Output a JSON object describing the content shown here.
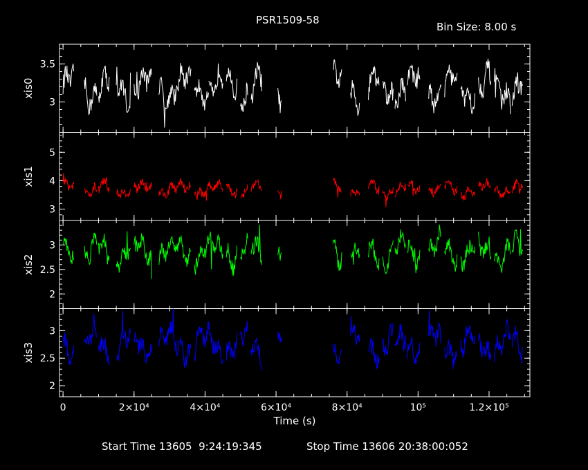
{
  "title": "PSR1509-58",
  "bin_size_label": "Bin Size: 8.00 s",
  "start_time_label": "Start Time 13605  9:24:19:345",
  "stop_time_label": "Stop Time 13606 20:38:00:052",
  "chart_data": {
    "type": "line",
    "title": "PSR1509-58",
    "xlabel": "Time (s)",
    "xlim": [
      -1000,
      131500
    ],
    "x_ticks": [
      0,
      20000,
      40000,
      60000,
      80000,
      100000,
      120000
    ],
    "x_tick_labels": [
      "0",
      "2×10⁴",
      "4×10⁴",
      "6×10⁴",
      "8×10⁴",
      "10⁵",
      "1.2×10⁵"
    ],
    "segments": [
      [
        0,
        3000
      ],
      [
        6000,
        9500
      ],
      [
        10000,
        13000
      ],
      [
        15000,
        19000
      ],
      [
        20000,
        25000
      ],
      [
        27000,
        31500
      ],
      [
        31500,
        36000
      ],
      [
        37000,
        41000
      ],
      [
        41000,
        45000
      ],
      [
        46000,
        49000
      ],
      [
        50000,
        52000
      ],
      [
        53000,
        56000
      ],
      [
        60500,
        61500
      ],
      [
        76000,
        78500
      ],
      [
        81000,
        83500
      ],
      [
        86000,
        89000
      ],
      [
        90000,
        93000
      ],
      [
        93500,
        96500
      ],
      [
        97000,
        100500
      ],
      [
        103000,
        106500
      ],
      [
        107500,
        111000
      ],
      [
        112000,
        116000
      ],
      [
        117000,
        120500
      ],
      [
        121500,
        126000
      ],
      [
        126500,
        129500
      ]
    ],
    "series": [
      {
        "name": "xis0",
        "color": "#ffffff",
        "ylim": [
          2.6,
          3.76
        ],
        "ticks": [
          3,
          3.5
        ],
        "tick_labels": [
          "3",
          "3.5"
        ],
        "base": 3.2,
        "amp": 0.28,
        "noise": 0.12
      },
      {
        "name": "xis1",
        "color": "#ff0000",
        "ylim": [
          2.6,
          5.7
        ],
        "ticks": [
          3,
          4,
          5
        ],
        "tick_labels": [
          "3",
          "4",
          "5"
        ],
        "base": 3.7,
        "amp": 0.28,
        "noise": 0.15
      },
      {
        "name": "xis2",
        "color": "#00ff00",
        "ylim": [
          1.7,
          3.5
        ],
        "ticks": [
          2,
          2.5,
          3
        ],
        "tick_labels": [
          "2",
          "2.5",
          "3"
        ],
        "base": 2.85,
        "amp": 0.35,
        "noise": 0.15
      },
      {
        "name": "xis3",
        "color": "#0000ff",
        "ylim": [
          1.8,
          3.4
        ],
        "ticks": [
          2,
          2.5,
          3
        ],
        "tick_labels": [
          "2",
          "2.5",
          "3"
        ],
        "base": 2.75,
        "amp": 0.33,
        "noise": 0.15
      }
    ]
  }
}
